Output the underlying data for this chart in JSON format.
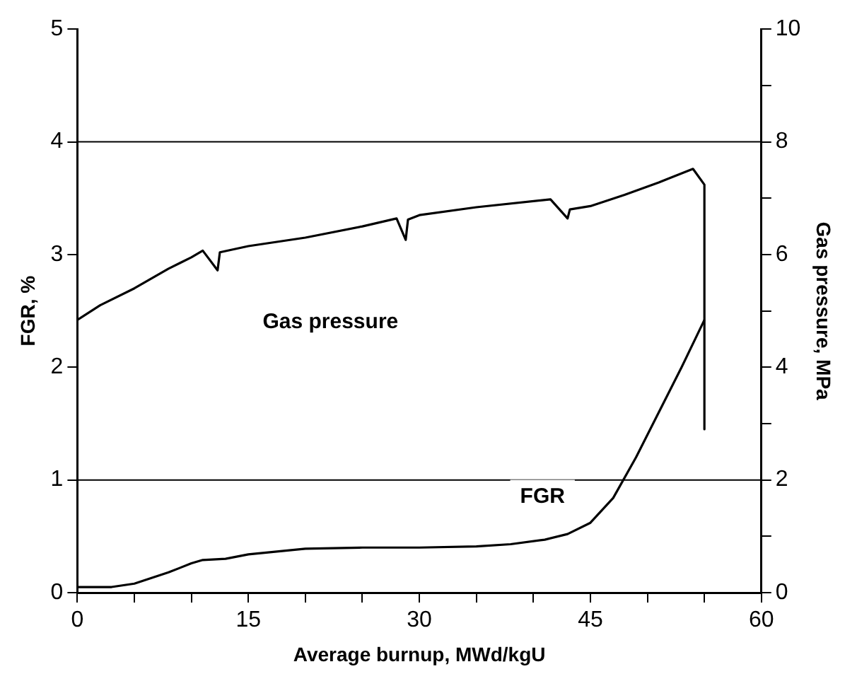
{
  "chart_data": {
    "type": "line",
    "xlabel": "Average burnup, MWd/kgU",
    "ylabel": "FGR, %",
    "y2label": "Gas pressure, MPa",
    "xlim": [
      0,
      60
    ],
    "xticks": [
      0,
      {
        "value": 5,
        "label": null
      },
      {
        "value": 10,
        "label": null
      },
      15,
      {
        "value": 20,
        "label": null
      },
      {
        "value": 25,
        "label": null
      },
      30,
      {
        "value": 35,
        "label": null
      },
      {
        "value": 40,
        "label": null
      },
      45,
      {
        "value": 50,
        "label": null
      },
      {
        "value": 55,
        "label": null
      },
      60
    ],
    "ylim": [
      0,
      5
    ],
    "yticks": [
      0,
      1,
      2,
      3,
      4,
      5
    ],
    "y2lim": [
      0,
      10
    ],
    "y2ticks": [
      0,
      {
        "value": 1,
        "label": null
      },
      2,
      {
        "value": 3,
        "label": null
      },
      4,
      {
        "value": 5,
        "label": null
      },
      6,
      {
        "value": 7,
        "label": null
      },
      8,
      {
        "value": 9,
        "label": null
      },
      10
    ],
    "grid": false,
    "legend": false,
    "marker": "none",
    "line_style": "solid",
    "ref_lines": [
      {
        "axis": "y",
        "value": 1,
        "label": null,
        "color": "#000000"
      },
      {
        "axis": "y",
        "value": 4,
        "label": null,
        "color": "#000000"
      }
    ],
    "series": [
      {
        "name": "Gas pressure",
        "color": "#000000",
        "axis": "y2",
        "x": [
          0,
          2,
          5,
          8,
          10,
          11,
          12.3,
          12.5,
          15,
          20,
          25,
          28,
          28.8,
          29,
          30,
          35,
          41.5,
          43,
          43.2,
          45,
          48,
          51,
          54,
          55,
          55
        ],
        "values": [
          4.84,
          5.1,
          5.4,
          5.75,
          5.95,
          6.07,
          5.72,
          6.04,
          6.15,
          6.3,
          6.5,
          6.64,
          6.26,
          6.62,
          6.7,
          6.84,
          6.98,
          6.64,
          6.8,
          6.86,
          7.06,
          7.28,
          7.52,
          7.24,
          2.9
        ]
      },
      {
        "name": "FGR",
        "color": "#000000",
        "x": [
          0,
          3,
          5,
          8,
          10,
          11,
          13,
          15,
          20,
          25,
          30,
          35,
          38,
          41,
          43,
          45,
          47,
          49,
          51,
          53,
          55
        ],
        "values": [
          0.05,
          0.05,
          0.08,
          0.18,
          0.26,
          0.29,
          0.3,
          0.34,
          0.39,
          0.4,
          0.4,
          0.41,
          0.43,
          0.47,
          0.52,
          0.62,
          0.84,
          1.2,
          1.6,
          2.0,
          2.42
        ]
      }
    ]
  }
}
